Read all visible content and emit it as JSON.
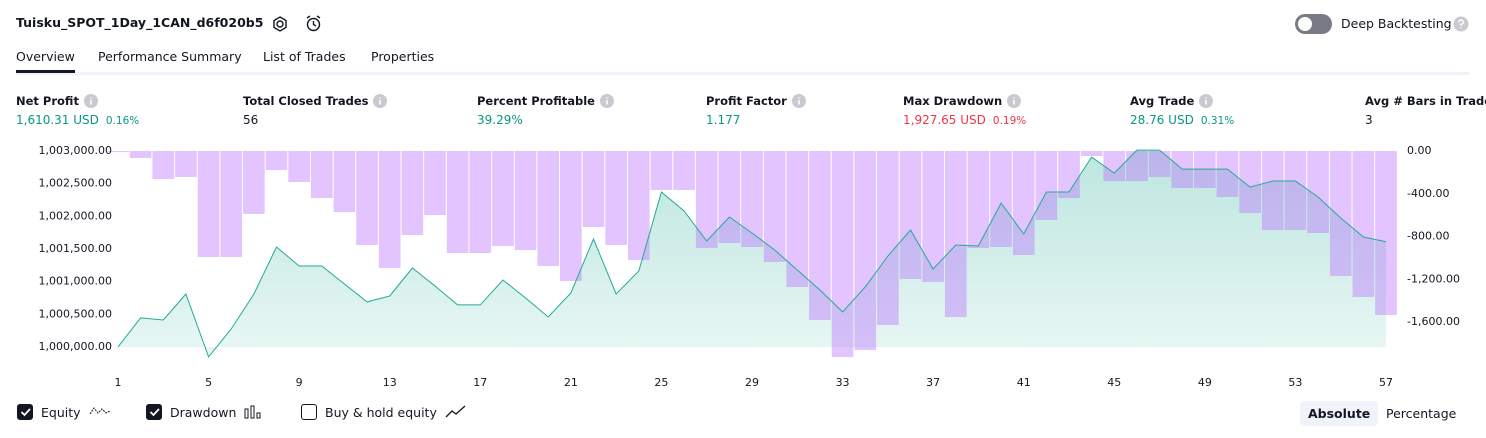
{
  "header": {
    "title": "Tuisku_SPOT_1Day_1CAN_d6f020b5",
    "toggle_label": "Deep Backtesting"
  },
  "tabs": [
    "Overview",
    "Performance Summary",
    "List of Trades",
    "Properties"
  ],
  "metrics": [
    {
      "label": "Net Profit",
      "value": "1,610.31 USD",
      "extra": "0.16%",
      "color": "#089981"
    },
    {
      "label": "Total Closed Trades",
      "value": "56",
      "color": "#131722"
    },
    {
      "label": "Percent Profitable",
      "value": "39.29%",
      "color": "#089981"
    },
    {
      "label": "Profit Factor",
      "value": "1.177",
      "color": "#089981"
    },
    {
      "label": "Max Drawdown",
      "value": "1,927.65 USD",
      "extra": "0.19%",
      "color": "#f23645"
    },
    {
      "label": "Avg Trade",
      "value": "28.76 USD",
      "extra": "0.31%",
      "color": "#089981"
    },
    {
      "label": "Avg # Bars in Trades",
      "value": "3",
      "color": "#131722"
    }
  ],
  "chart_data": {
    "type": "combo",
    "x": [
      1,
      2,
      3,
      4,
      5,
      6,
      7,
      8,
      9,
      10,
      11,
      12,
      13,
      14,
      15,
      16,
      17,
      18,
      19,
      20,
      21,
      22,
      23,
      24,
      25,
      26,
      27,
      28,
      29,
      30,
      31,
      32,
      33,
      34,
      35,
      36,
      37,
      38,
      39,
      40,
      41,
      42,
      43,
      44,
      45,
      46,
      47,
      48,
      49,
      50,
      51,
      52,
      53,
      54,
      55,
      56,
      57
    ],
    "xlim": [
      1,
      57
    ],
    "xticks": [
      1,
      5,
      9,
      13,
      17,
      21,
      25,
      29,
      33,
      37,
      41,
      45,
      49,
      53,
      57
    ],
    "ylim": [
      999800,
      1003000
    ],
    "yticks": [
      {
        "value": 1000000,
        "label": "1,000,000.00"
      },
      {
        "value": 1000500,
        "label": "1,000,500.00"
      },
      {
        "value": 1001000,
        "label": "1,001,000.00"
      },
      {
        "value": 1001500,
        "label": "1,001,500.00"
      },
      {
        "value": 1002000,
        "label": "1,002,000.00"
      },
      {
        "value": 1002500,
        "label": "1,002,500.00"
      },
      {
        "value": 1003000,
        "label": "1,003,000.00"
      }
    ],
    "y2lim": [
      -1955,
      0
    ],
    "y2ticks": [
      {
        "value": 0,
        "label": "0.00"
      },
      {
        "value": -400,
        "label": "-400.00"
      },
      {
        "value": -800,
        "label": "-800.00"
      },
      {
        "value": -1200,
        "label": "-1,200.00"
      },
      {
        "value": -1600,
        "label": "-1,600.00"
      }
    ],
    "grid": false,
    "series": [
      {
        "name": "Equity",
        "type": "area",
        "axis": "y",
        "color": "#22ab94",
        "values": [
          1000000,
          1000444,
          1000413,
          1000811,
          999847,
          1000275,
          1000811,
          1001530,
          1001239,
          1001239,
          1000964,
          1000689,
          1000780,
          1001209,
          1000933,
          1000643,
          1000643,
          1001025,
          1000750,
          1000459,
          1000826,
          1001652,
          1000811,
          1001163,
          1002372,
          1002081,
          1001622,
          1001989,
          1001744,
          1001484,
          1001178,
          1000872,
          1000536,
          1000918,
          1001392,
          1001790,
          1001193,
          1001561,
          1001545,
          1002203,
          1001729,
          1002372,
          1002372,
          1002907,
          1002662,
          1003014,
          1003014,
          1002723,
          1002723,
          1002723,
          1002448,
          1002540,
          1002540,
          1002295,
          1001974,
          1001683,
          1001610.31
        ]
      },
      {
        "name": "Drawdown",
        "type": "bar",
        "axis": "y2",
        "color": "#b86bff",
        "values": [
          -10,
          -65,
          -262,
          -243,
          -992,
          -992,
          -589,
          -178,
          -290,
          -440,
          -571,
          -879,
          -1094,
          -786,
          -599,
          -954,
          -954,
          -889,
          -926,
          -1076,
          -1216,
          -711,
          -879,
          -1020,
          -365,
          -365,
          -907,
          -861,
          -898,
          -1038,
          -1272,
          -1581,
          -1927.65,
          -1862,
          -1628,
          -1197,
          -1225,
          -1553,
          -907,
          -898,
          -973,
          -645,
          -440,
          -47,
          -281,
          -281,
          -243,
          -346,
          -346,
          -430,
          -580,
          -739,
          -739,
          -767,
          -1169,
          -1366,
          -1534
        ]
      }
    ]
  },
  "legend_extra": "Buy & hold equity",
  "buttons": [
    "Absolute",
    "Percentage"
  ]
}
